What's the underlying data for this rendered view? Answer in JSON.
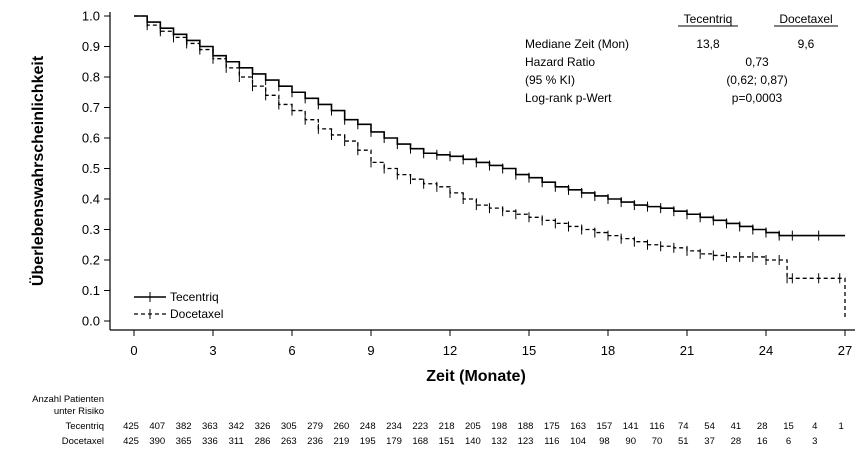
{
  "chart_data": {
    "type": "line",
    "xlabel": "Zeit (Monate)",
    "ylabel": "Überlebenswahrscheinlichkeit",
    "xlim": [
      0,
      27
    ],
    "ylim": [
      0,
      1
    ],
    "xticks": [
      0,
      3,
      6,
      9,
      12,
      15,
      18,
      21,
      24,
      27
    ],
    "yticks": [
      "0.0",
      "0.1",
      "0.2",
      "0.3",
      "0.4",
      "0.5",
      "0.6",
      "0.7",
      "0.8",
      "0.9",
      "1.0"
    ],
    "grid": false,
    "legend_position": "bottom-left",
    "series": [
      {
        "name": "Tecentriq",
        "style": "solid",
        "x": [
          0,
          0.5,
          1,
          1.5,
          2,
          2.5,
          3,
          3.5,
          4,
          4.5,
          5,
          5.5,
          6,
          6.5,
          7,
          7.5,
          8,
          8.5,
          9,
          9.5,
          10,
          10.5,
          11,
          11.5,
          12,
          12.5,
          13,
          13.5,
          14,
          14.5,
          15,
          15.5,
          16,
          16.5,
          17,
          17.5,
          18,
          18.5,
          19,
          19.5,
          20,
          20.5,
          21,
          21.5,
          22,
          22.5,
          23,
          23.5,
          24,
          24.5,
          25,
          26,
          27
        ],
        "y": [
          1.0,
          0.98,
          0.96,
          0.94,
          0.92,
          0.9,
          0.87,
          0.85,
          0.83,
          0.81,
          0.79,
          0.77,
          0.75,
          0.73,
          0.71,
          0.69,
          0.66,
          0.645,
          0.62,
          0.6,
          0.58,
          0.565,
          0.55,
          0.545,
          0.54,
          0.53,
          0.52,
          0.51,
          0.5,
          0.48,
          0.47,
          0.455,
          0.44,
          0.43,
          0.42,
          0.41,
          0.4,
          0.39,
          0.38,
          0.375,
          0.37,
          0.36,
          0.35,
          0.34,
          0.33,
          0.32,
          0.31,
          0.3,
          0.29,
          0.28,
          0.28,
          0.28,
          0.28
        ]
      },
      {
        "name": "Docetaxel",
        "style": "dashed",
        "x": [
          0,
          0.5,
          1,
          1.5,
          2,
          2.5,
          3,
          3.5,
          4,
          4.5,
          5,
          5.5,
          6,
          6.5,
          7,
          7.5,
          8,
          8.5,
          9,
          9.5,
          10,
          10.5,
          11,
          11.5,
          12,
          12.5,
          13,
          13.5,
          14,
          14.5,
          15,
          15.5,
          16,
          16.5,
          17,
          17.5,
          18,
          18.5,
          19,
          19.5,
          20,
          20.5,
          21,
          21.5,
          22,
          22.5,
          23,
          23.5,
          24,
          24.5,
          24.8,
          25,
          26,
          26.8,
          27
        ],
        "y": [
          1.0,
          0.97,
          0.95,
          0.93,
          0.91,
          0.89,
          0.86,
          0.83,
          0.8,
          0.77,
          0.74,
          0.71,
          0.69,
          0.66,
          0.63,
          0.61,
          0.59,
          0.56,
          0.52,
          0.5,
          0.48,
          0.465,
          0.45,
          0.44,
          0.42,
          0.4,
          0.38,
          0.37,
          0.36,
          0.35,
          0.34,
          0.33,
          0.32,
          0.31,
          0.3,
          0.29,
          0.28,
          0.27,
          0.26,
          0.25,
          0.245,
          0.24,
          0.23,
          0.22,
          0.215,
          0.21,
          0.21,
          0.21,
          0.2,
          0.2,
          0.14,
          0.14,
          0.14,
          0.14,
          0.01
        ]
      }
    ],
    "stats_table": {
      "col_headers": [
        "Tecentriq",
        "Docetaxel"
      ],
      "rows": [
        {
          "label": "Mediane Zeit (Mon)",
          "tecentriq": "13,8",
          "docetaxel": "9,6"
        },
        {
          "label": "Hazard Ratio",
          "combined": "0,73"
        },
        {
          "label": "(95 % KI)",
          "combined": "(0,62; 0,87)"
        },
        {
          "label": "Log-rank p-Wert",
          "combined": "p=0,0003"
        }
      ]
    },
    "risk_table": {
      "title_line1": "Anzahl Patienten",
      "title_line2": "unter Risiko",
      "rows": [
        {
          "label": "Tecentriq",
          "values": [
            "425",
            "407",
            "382",
            "363",
            "342",
            "326",
            "305",
            "279",
            "260",
            "248",
            "234",
            "223",
            "218",
            "205",
            "198",
            "188",
            "175",
            "163",
            "157",
            "141",
            "116",
            "74",
            "54",
            "41",
            "28",
            "15",
            "4",
            "1"
          ]
        },
        {
          "label": "Docetaxel",
          "values": [
            "425",
            "390",
            "365",
            "336",
            "311",
            "286",
            "263",
            "236",
            "219",
            "195",
            "179",
            "168",
            "151",
            "140",
            "132",
            "123",
            "116",
            "104",
            "98",
            "90",
            "70",
            "51",
            "37",
            "28",
            "16",
            "6",
            "3"
          ]
        }
      ]
    }
  }
}
